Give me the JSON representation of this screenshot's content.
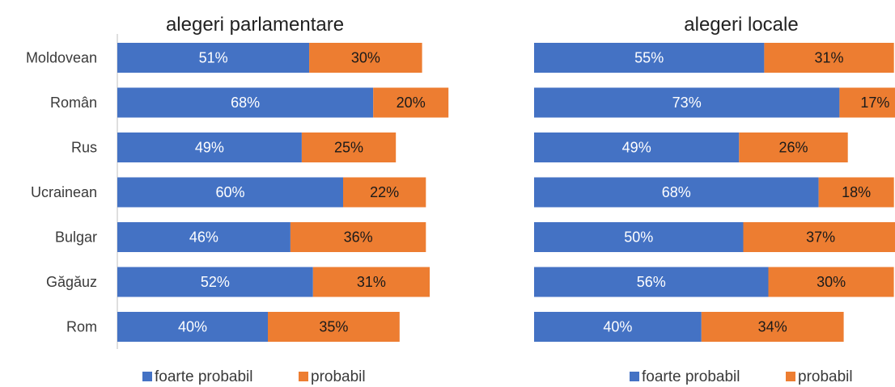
{
  "colors": {
    "foarte_probabil": "#4472C4",
    "probabil": "#ED7D31",
    "axis": "#bfbfbf"
  },
  "chart_data": [
    {
      "type": "bar",
      "orientation": "horizontal",
      "stacked": true,
      "title": "alegeri parlamentare",
      "categories": [
        "Moldovean",
        "Român",
        "Rus",
        "Ucrainean",
        "Bulgar",
        "Găgăuz",
        "Rom"
      ],
      "series": [
        {
          "name": "foarte probabil",
          "values": [
            51,
            68,
            49,
            60,
            46,
            52,
            40
          ]
        },
        {
          "name": "probabil",
          "values": [
            30,
            20,
            25,
            22,
            36,
            31,
            35
          ]
        }
      ],
      "value_format": "{v}%",
      "legend": "bottom",
      "grid": false
    },
    {
      "type": "bar",
      "orientation": "horizontal",
      "stacked": true,
      "title": "alegeri locale",
      "categories": [
        "Moldovean",
        "Român",
        "Rus",
        "Ucrainean",
        "Bulgar",
        "Găgăuz",
        "Rom"
      ],
      "series": [
        {
          "name": "foarte probabil",
          "values": [
            55,
            73,
            49,
            68,
            50,
            56,
            40
          ]
        },
        {
          "name": "probabil",
          "values": [
            31,
            17,
            26,
            18,
            37,
            30,
            34
          ]
        }
      ],
      "value_format": "{v}%",
      "legend": "bottom",
      "grid": false
    }
  ]
}
